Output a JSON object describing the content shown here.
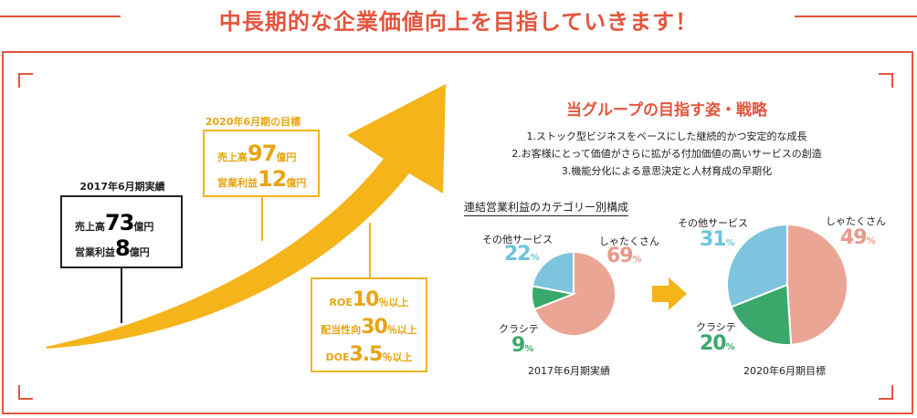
{
  "headline": "中長期的な企業価値向上を目指していきます！",
  "actual_box": {
    "title": "2017年6月期実績",
    "sales_label": "売上高",
    "sales_value": "73",
    "sales_unit": "億円",
    "profit_label": "営業利益",
    "profit_value": "8",
    "profit_unit": "億円"
  },
  "target_box": {
    "title": "2020年6月期の目標",
    "sales_label": "売上高",
    "sales_value": "97",
    "sales_unit": "億円",
    "profit_label": "営業利益",
    "profit_value": "12",
    "profit_unit": "億円"
  },
  "kpi_box": {
    "roe_label": "ROE",
    "roe_value": "10",
    "roe_unit": "％以上",
    "payout_label": "配当性向",
    "payout_value": "30",
    "payout_unit": "％以上",
    "doe_label": "DOE",
    "doe_value": "3.5",
    "doe_unit": "％以上"
  },
  "strategy": {
    "title": "当グループの目指す姿・戦略",
    "items": [
      "1.ストック型ビジネスをベースにした継続的かつ安定的な成長",
      "2.お客様にとって価値がさらに拡がる付加価値の高いサービスの創造",
      "3.機能分化による意思決定と人材育成の早期化"
    ]
  },
  "pie_section_title": "連結営業利益のカテゴリー別構成",
  "colors": {
    "accent": "#e4553d",
    "arrow": "#f4b41a",
    "shatakusan": "#eba595",
    "other": "#7fc4de",
    "kurashite": "#3aa86b"
  },
  "chart_data": [
    {
      "type": "pie",
      "title": "2017年6月期実績",
      "slices": [
        {
          "name": "しゃたくさん",
          "value": 69,
          "label": "69",
          "unit": "%"
        },
        {
          "name": "クラシテ",
          "value": 9,
          "label": "9",
          "unit": "%"
        },
        {
          "name": "その他サービス",
          "value": 22,
          "label": "22",
          "unit": "%"
        }
      ]
    },
    {
      "type": "pie",
      "title": "2020年6月期目標",
      "slices": [
        {
          "name": "しゃたくさん",
          "value": 49,
          "label": "49",
          "unit": "%"
        },
        {
          "name": "クラシテ",
          "value": 20,
          "label": "20",
          "unit": "%"
        },
        {
          "name": "その他サービス",
          "value": 31,
          "label": "31",
          "unit": "%"
        }
      ]
    }
  ]
}
